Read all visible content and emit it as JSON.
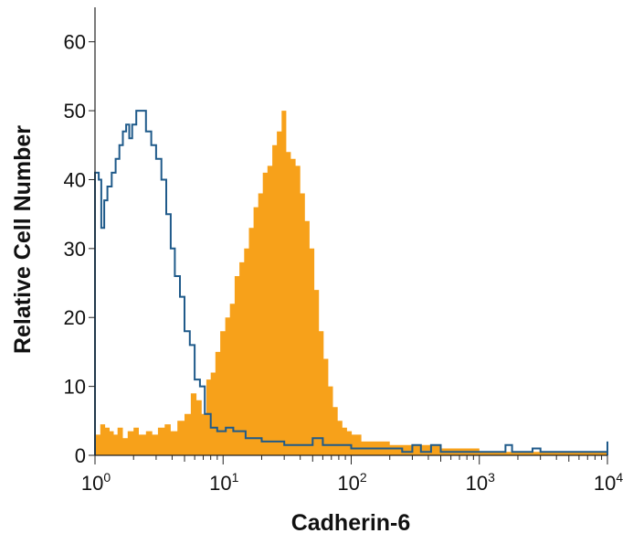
{
  "chart_data": {
    "type": "area",
    "title": "",
    "xlabel": "Cadherin-6",
    "ylabel": "Relative Cell Number",
    "xscale": "log",
    "xlim": [
      1,
      10000
    ],
    "ylim": [
      0,
      65
    ],
    "x_ticks": [
      {
        "base": "10",
        "exp": "0"
      },
      {
        "base": "10",
        "exp": "1"
      },
      {
        "base": "10",
        "exp": "2"
      },
      {
        "base": "10",
        "exp": "3"
      },
      {
        "base": "10",
        "exp": "4"
      }
    ],
    "y_ticks": [
      "0",
      "10",
      "20",
      "30",
      "40",
      "50",
      "60"
    ],
    "grid": false,
    "legend": "none",
    "series": [
      {
        "style": "filled",
        "color": "#F7A11A",
        "points": [
          [
            1.0,
            3
          ],
          [
            1.1,
            4.5
          ],
          [
            1.2,
            4
          ],
          [
            1.3,
            3.5
          ],
          [
            1.4,
            3
          ],
          [
            1.5,
            4
          ],
          [
            1.65,
            2.5
          ],
          [
            1.8,
            3.5
          ],
          [
            2.0,
            4
          ],
          [
            2.2,
            3
          ],
          [
            2.5,
            3.5
          ],
          [
            2.8,
            3
          ],
          [
            3.1,
            4
          ],
          [
            3.5,
            4.5
          ],
          [
            3.9,
            3.5
          ],
          [
            4.4,
            5
          ],
          [
            5.0,
            6
          ],
          [
            5.6,
            9
          ],
          [
            6.2,
            8
          ],
          [
            6.8,
            6
          ],
          [
            7.4,
            11
          ],
          [
            8.0,
            12
          ],
          [
            8.7,
            15
          ],
          [
            9.5,
            18
          ],
          [
            10.4,
            20
          ],
          [
            11.3,
            22
          ],
          [
            12.3,
            26
          ],
          [
            13.4,
            28
          ],
          [
            14.6,
            30
          ],
          [
            15.9,
            33
          ],
          [
            17.3,
            36
          ],
          [
            18.8,
            38
          ],
          [
            20.4,
            41
          ],
          [
            22.2,
            42
          ],
          [
            24.2,
            45
          ],
          [
            26.3,
            47
          ],
          [
            28.6,
            50
          ],
          [
            31.1,
            44
          ],
          [
            33.8,
            43
          ],
          [
            36.8,
            42
          ],
          [
            40.0,
            38
          ],
          [
            43.5,
            34
          ],
          [
            47.3,
            30
          ],
          [
            51.5,
            24
          ],
          [
            56.0,
            18
          ],
          [
            60.9,
            14
          ],
          [
            66.2,
            10
          ],
          [
            72.0,
            7
          ],
          [
            78.4,
            5
          ],
          [
            85.3,
            4
          ],
          [
            92.8,
            3.5
          ],
          [
            101,
            3
          ],
          [
            120,
            2
          ],
          [
            150,
            2
          ],
          [
            200,
            1.5
          ],
          [
            300,
            1.5
          ],
          [
            500,
            1
          ],
          [
            1000,
            0.5
          ],
          [
            2000,
            0.5
          ],
          [
            3000,
            0.5
          ],
          [
            10000,
            0
          ]
        ]
      },
      {
        "style": "outline",
        "color": "#1F5A8A",
        "points": [
          [
            1.0,
            41
          ],
          [
            1.07,
            40
          ],
          [
            1.12,
            33
          ],
          [
            1.18,
            37
          ],
          [
            1.25,
            39
          ],
          [
            1.35,
            41
          ],
          [
            1.45,
            43
          ],
          [
            1.55,
            45
          ],
          [
            1.65,
            47
          ],
          [
            1.75,
            48
          ],
          [
            1.85,
            46
          ],
          [
            1.95,
            48
          ],
          [
            2.1,
            50
          ],
          [
            2.3,
            50
          ],
          [
            2.5,
            47
          ],
          [
            2.75,
            45
          ],
          [
            3.0,
            43
          ],
          [
            3.3,
            40
          ],
          [
            3.6,
            35
          ],
          [
            3.9,
            30
          ],
          [
            4.2,
            26
          ],
          [
            4.6,
            23
          ],
          [
            5.0,
            18
          ],
          [
            5.5,
            16
          ],
          [
            6.0,
            11
          ],
          [
            6.6,
            10
          ],
          [
            7.2,
            6
          ],
          [
            8.0,
            4
          ],
          [
            9.0,
            3.5
          ],
          [
            10.5,
            4
          ],
          [
            12.0,
            3.5
          ],
          [
            15.0,
            2.5
          ],
          [
            20.0,
            2
          ],
          [
            30.0,
            1.5
          ],
          [
            40.0,
            1.5
          ],
          [
            50.0,
            2.5
          ],
          [
            60.0,
            1.5
          ],
          [
            100,
            1
          ],
          [
            200,
            1
          ],
          [
            250,
            0.5
          ],
          [
            300,
            1.5
          ],
          [
            350,
            0.5
          ],
          [
            420,
            1.5
          ],
          [
            500,
            0.5
          ],
          [
            1000,
            0.5
          ],
          [
            1600,
            1.5
          ],
          [
            1800,
            0.5
          ],
          [
            2600,
            1
          ],
          [
            3000,
            0.5
          ],
          [
            9500,
            0.5
          ],
          [
            10000,
            2
          ]
        ]
      }
    ]
  }
}
